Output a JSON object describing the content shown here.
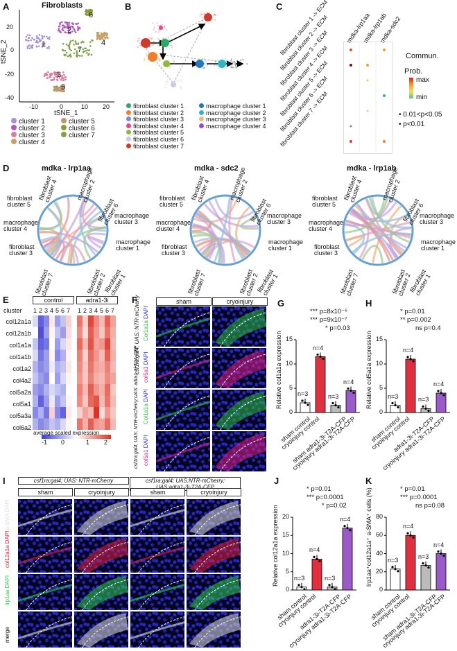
{
  "panels": {
    "A": "A",
    "B": "B",
    "C": "C",
    "D": "D",
    "E": "E",
    "F": "F",
    "G": "G",
    "H": "H",
    "I": "I",
    "J": "J",
    "K": "K"
  },
  "tsne": {
    "title": "Fibroblasts",
    "xlabel": "tSNE_1",
    "ylabel": "tSNE_2",
    "xticks": [
      "-10",
      "0",
      "10",
      "20"
    ],
    "yticks": [
      "20",
      "0",
      "-20",
      "-40"
    ],
    "cluster_labels": [
      "1",
      "2",
      "3",
      "4",
      "5",
      "6",
      "7"
    ],
    "legend": [
      "cluster 1",
      "cluster 2",
      "cluster 3",
      "cluster 4",
      "cluster 5",
      "cluster 6",
      "cluster 7"
    ],
    "colors": [
      "#a78fd6",
      "#b05ab8",
      "#d67fa0",
      "#c7a068",
      "#b89a6a",
      "#8a9b3a",
      "#7da24a"
    ]
  },
  "traj": {
    "legend_fib": [
      "fibroblast cluster 1",
      "fibroblast cluster 2",
      "fibroblast cluster 3",
      "fibroblast cluster 4",
      "fibroblast cluster 5",
      "fibroblast cluster 6",
      "fibroblast cluster 7"
    ],
    "legend_mac": [
      "macrophage cluster 1",
      "macrophage cluster 2",
      "macrophage cluster 3",
      "macrophage cluster 4"
    ],
    "fib_colors": [
      "#2aa86a",
      "#f07e2a",
      "#7e8ccf",
      "#e0488a",
      "#8abb3a",
      "#c9c9e8",
      "#d13a2a"
    ],
    "mac_colors": [
      "#2478b8",
      "#30b5c8",
      "#f2b880",
      "#9a4ad0"
    ]
  },
  "bubble": {
    "cols": [
      "mdka-lrp1aa",
      "mdka-lrp1ab",
      "mdka-sdc2"
    ],
    "rows": [
      "fibroblast cluster 1 -> ECM",
      "fibroblast cluster 2 -> ECM",
      "fibroblast cluster 3 -> ECM",
      "fibroblast cluster 4 -> ECM",
      "fibroblast cluster 5 -> ECM",
      "fibroblast cluster 6 -> ECM",
      "fibroblast cluster 7 -> ECM"
    ],
    "legend_commun": "Commun.",
    "legend_prob": "Prob.",
    "max": "max",
    "min": "min",
    "p1": "0.01<p<0.05",
    "p2": "p<0.01"
  },
  "chord": {
    "titles": [
      "mdka - lrp1aa",
      "mdka - sdc2",
      "mdka - lrp1ab"
    ],
    "labels": [
      "fibroblast cluster 4",
      "fibroblast cluster 5",
      "macrophage cluster 4",
      "fibroblast cluster 3",
      "fibroblast cluster 7",
      "fibroblast cluster 2",
      "fibroblast cluster 1",
      "macrophage cluster 1",
      "macrophage cluster 3",
      "fibroblast cluster 6",
      "macrophage cluster 2"
    ]
  },
  "heatmap": {
    "groups": [
      "control",
      "adra1-3i"
    ],
    "cluster_label": "cluster",
    "clusters": [
      "1",
      "2",
      "3",
      "4",
      "5",
      "6",
      "7"
    ],
    "genes": [
      "col12a1a",
      "col12a1b",
      "col1a1a",
      "col1a1b",
      "col1a2",
      "col4a2",
      "col5a2a",
      "col5a1",
      "col5a3a",
      "col6a2"
    ],
    "legend_title": "average scaled expression",
    "legend_ticks": [
      "-1",
      "0",
      "1",
      "2"
    ]
  },
  "micrograph_F": {
    "cols": [
      "sham",
      "cryoinjury"
    ],
    "genotypes": [
      "csf1ra:gal4; UAS: NTR-mCherry",
      "csf1ra:gal4; UAS: NTR-mCherry;UAS: adra1-3i-T2A-CFP"
    ],
    "stains": [
      "Col1a1a",
      "DAPI",
      "col5a1",
      "DAPI"
    ]
  },
  "bars": {
    "G": {
      "ylabel": "Relative col1a1a expression",
      "yticks": [
        "0",
        "5",
        "10",
        "15"
      ],
      "ymax": 15,
      "cats": [
        "sham control",
        "cryoinjury control",
        "sham adra1-3i-T2A-CFP",
        "cryoinjury adra1-3i-T2A-CFP"
      ],
      "values": [
        2,
        11.5,
        1.5,
        4.5
      ],
      "ns": [
        "n=3",
        "n=4",
        "n=3",
        "n=4"
      ],
      "stats": [
        "*** p=8x10⁻⁶",
        "*** p=9x10⁻⁷",
        "* p=0.03"
      ]
    },
    "H": {
      "ylabel": "Relative col5a1a expression",
      "yticks": [
        "0",
        "5",
        "10",
        "15"
      ],
      "ymax": 15,
      "cats": [
        "sham control",
        "cryoinjury control",
        "adra1-3i-T2A-CFP",
        "cryoinjury adra1-3i-T2A-CFP"
      ],
      "values": [
        1.5,
        11,
        0.8,
        4
      ],
      "ns": [
        "n=3",
        "n=4",
        "n=3",
        "n=4"
      ],
      "stats": [
        "* p=0.01",
        "** p=0.002",
        "ns p=0.4"
      ]
    },
    "J": {
      "ylabel": "Relative col12a1a expression",
      "yticks": [
        "0",
        "5",
        "10",
        "15",
        "20"
      ],
      "ymax": 20,
      "cats": [
        "sham control",
        "cryoinjury control",
        "adra1-3i-T2A-CFP",
        "cryoinjury adra1-3i-T2A-CFP"
      ],
      "values": [
        0.8,
        8.5,
        0.8,
        17
      ],
      "ns": [
        "n=3",
        "n=4",
        "n=3",
        "n=4"
      ],
      "stats": [
        "* p=0.01",
        "*** p=0.0001",
        "* p=0.02"
      ]
    },
    "K": {
      "ylabel": "lrp1aa⁺col12a1a⁺ a-SMA⁺ cells (%)",
      "yticks": [
        "0",
        "20",
        "40",
        "60",
        "80"
      ],
      "ymax": 80,
      "cats": [
        "sham control",
        "cryoinjury control",
        "sham adra1-3i-T2A-CFP",
        "cryoinjury adra1-3i-T2A-CFP"
      ],
      "values": [
        23,
        60,
        27,
        40
      ],
      "ns": [
        "n=3",
        "n=4",
        "n=3",
        "n=4"
      ],
      "stats": [
        "* p=0.01",
        "*** p=0.0001",
        "ns p=0.08"
      ]
    }
  },
  "micrograph_I": {
    "genotypes": [
      "csf1ra:gal4; UAS: NTR-mCherry",
      "csf1ra:gal4; UAS:NTR-mCherry; UAS:adra1-3i-T2A-CFP"
    ],
    "cols": [
      "sham",
      "cryoinjury",
      "sham",
      "cryoinjury"
    ],
    "rows": [
      "a-SMA DAPI",
      "col12a1a DAPI",
      "lrp1aa DAPI",
      "merge"
    ]
  }
}
